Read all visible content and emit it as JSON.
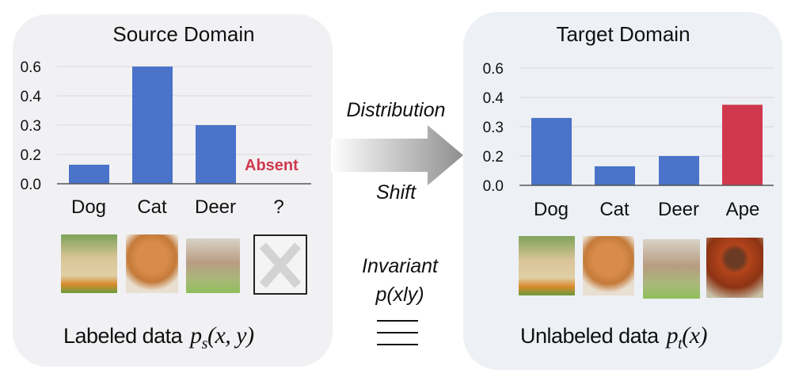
{
  "source": {
    "title": "Source Domain",
    "bottom_label": "Labeled data",
    "formula": "p_s(x, y)",
    "absent_label": "Absent",
    "images": [
      "dog-photo",
      "cat-photo",
      "deer-photo",
      "missing-x"
    ]
  },
  "target": {
    "title": "Target Domain",
    "bottom_label": "Unlabeled data",
    "formula": "p_t(x)",
    "images": [
      "dog-photo",
      "cat-photo",
      "deer-photo",
      "orangutan-photo"
    ]
  },
  "middle": {
    "arrow_top": "Distribution",
    "arrow_bottom": "Shift",
    "invariant": "Invariant",
    "invariant_formula": "p(xly)",
    "equivalence_symbol": "≡"
  },
  "colors": {
    "bar": "#4a73c9",
    "highlight": "#d0394d",
    "grid": "#d9d9de"
  },
  "chart_data": [
    {
      "type": "bar",
      "categories": [
        "Dog",
        "Cat",
        "Deer",
        "?"
      ],
      "values": [
        0.13,
        0.6,
        0.3,
        null
      ],
      "yticks": [
        "0.0",
        "0.2",
        "0.3",
        "0.4",
        "0.6"
      ],
      "ylim": [
        0,
        0.6
      ],
      "grid": true,
      "annotation": "Absent"
    },
    {
      "type": "bar",
      "categories": [
        "Dog",
        "Cat",
        "Deer",
        "Ape"
      ],
      "values": [
        0.33,
        0.13,
        0.2,
        0.375
      ],
      "yticks": [
        "0.0",
        "0.2",
        "0.3",
        "0.4",
        "0.6"
      ],
      "ylim": [
        0,
        0.6
      ],
      "grid": true,
      "highlight_category": "Ape"
    }
  ]
}
